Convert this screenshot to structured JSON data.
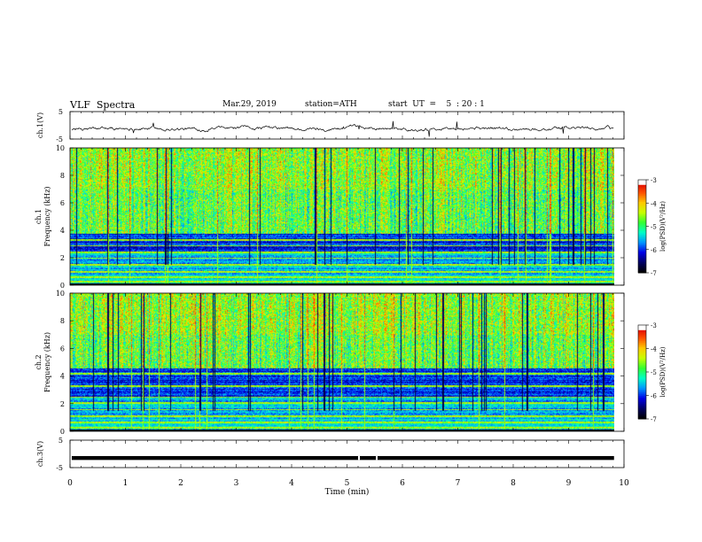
{
  "header": {
    "title": "VLF  Spectra",
    "date": "Mar.29, 2019",
    "station": "station=ATH",
    "start": "start  UT  =    5  : 20 : 1"
  },
  "colors": {
    "axis": "#000000",
    "trace": "#000000",
    "colormap": [
      "#000000",
      "#000064",
      "#0000e6",
      "#0096ff",
      "#00ffc8",
      "#32ff32",
      "#c8ff00",
      "#ffc800",
      "#ff5000",
      "#dc0000",
      "#ffffff"
    ]
  },
  "chart_data": [
    {
      "type": "line",
      "name": "ch1-waveform",
      "ylabel": "ch.1(V)",
      "xlim": [
        0,
        10
      ],
      "ylim": [
        -5,
        5
      ],
      "y_ticks": [
        "5",
        "-5"
      ],
      "description_values": {
        "baseline_v": -1.2,
        "typical_amplitude_v": 0.6
      }
    },
    {
      "type": "heatmap",
      "name": "ch1-spectrogram",
      "ylabel": "ch.1\nFrequency (kHz)",
      "xlim": [
        0,
        10
      ],
      "ylim": [
        0,
        10
      ],
      "y_ticks": [
        "0",
        "2",
        "4",
        "6",
        "8",
        "10"
      ],
      "colorbar": {
        "label": "log(PSD)(V²/Hz)",
        "ticks": [
          "-3",
          "-4",
          "-5",
          "-6",
          "-7"
        ],
        "range": [
          -7,
          -3
        ]
      },
      "bands_khz": [
        0.3,
        0.6,
        1.0,
        1.5,
        2.0,
        2.4,
        2.9,
        3.3
      ],
      "noise_floor_khz": 3.8
    },
    {
      "type": "heatmap",
      "name": "ch2-spectrogram",
      "ylabel": "ch.2\nFrequency (kHz)",
      "xlim": [
        0,
        10
      ],
      "ylim": [
        0,
        10
      ],
      "y_ticks": [
        "0",
        "2",
        "4",
        "6",
        "8",
        "10"
      ],
      "colorbar": {
        "label": "log(PSD)(V²/Hz)",
        "ticks": [
          "-3",
          "-4",
          "-5",
          "-6",
          "-7"
        ],
        "range": [
          -7,
          -3
        ]
      },
      "bands_khz": [
        0.3,
        0.7,
        1.1,
        1.6,
        2.1,
        2.5,
        3.3,
        4.2,
        4.7
      ],
      "noise_floor_khz": 4.6
    },
    {
      "type": "line",
      "name": "ch3-waveform",
      "ylabel": "ch.3(V)",
      "xlim": [
        0,
        10
      ],
      "ylim": [
        -5,
        5
      ],
      "y_ticks": [
        "5",
        "-5"
      ],
      "description_values": {
        "baseline_v": -1.5,
        "typical_amplitude_v": 0.2
      }
    }
  ],
  "x_axis": {
    "label": "Time  (min)",
    "ticks": [
      "0",
      "1",
      "2",
      "3",
      "4",
      "5",
      "6",
      "7",
      "8",
      "9",
      "10"
    ],
    "range": [
      0,
      10
    ],
    "data_end_min": 9.82
  }
}
